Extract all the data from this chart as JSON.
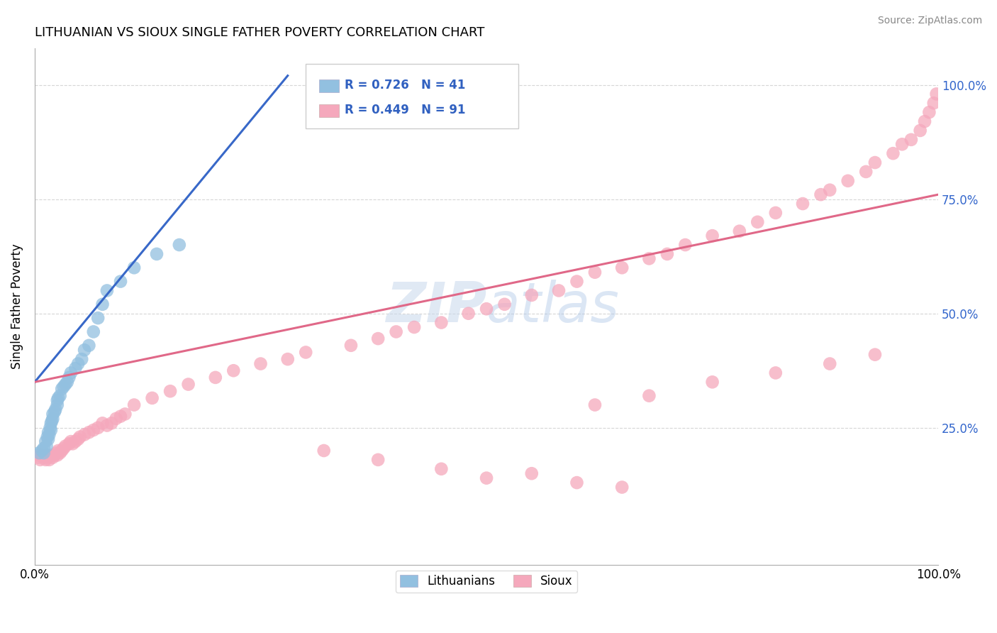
{
  "title": "LITHUANIAN VS SIOUX SINGLE FATHER POVERTY CORRELATION CHART",
  "source": "Source: ZipAtlas.com",
  "ylabel": "Single Father Poverty",
  "watermark_zip": "ZIP",
  "watermark_atlas": "atlas",
  "legend_blue_r": "R = 0.726",
  "legend_blue_n": "N = 41",
  "legend_pink_r": "R = 0.449",
  "legend_pink_n": "N = 91",
  "legend_label_blue": "Lithuanians",
  "legend_label_pink": "Sioux",
  "blue_color": "#92c0e0",
  "pink_color": "#f5a8bc",
  "blue_line_color": "#3868c8",
  "pink_line_color": "#e06888",
  "r_value_color": "#3060c0",
  "ytick_labels": [
    "25.0%",
    "50.0%",
    "75.0%",
    "100.0%"
  ],
  "ytick_values": [
    0.25,
    0.5,
    0.75,
    1.0
  ],
  "blue_scatter_x": [
    0.005,
    0.008,
    0.01,
    0.01,
    0.012,
    0.013,
    0.014,
    0.015,
    0.015,
    0.016,
    0.017,
    0.018,
    0.018,
    0.019,
    0.02,
    0.02,
    0.022,
    0.023,
    0.025,
    0.025,
    0.026,
    0.028,
    0.03,
    0.032,
    0.034,
    0.036,
    0.038,
    0.04,
    0.045,
    0.048,
    0.052,
    0.055,
    0.06,
    0.065,
    0.07,
    0.075,
    0.08,
    0.095,
    0.11,
    0.135,
    0.16
  ],
  "blue_scatter_y": [
    0.195,
    0.2,
    0.195,
    0.205,
    0.22,
    0.21,
    0.23,
    0.225,
    0.24,
    0.235,
    0.25,
    0.245,
    0.26,
    0.265,
    0.27,
    0.28,
    0.285,
    0.29,
    0.3,
    0.31,
    0.315,
    0.32,
    0.335,
    0.34,
    0.345,
    0.35,
    0.36,
    0.37,
    0.38,
    0.39,
    0.4,
    0.42,
    0.43,
    0.46,
    0.49,
    0.52,
    0.55,
    0.57,
    0.6,
    0.63,
    0.65
  ],
  "pink_scatter_x": [
    0.004,
    0.005,
    0.006,
    0.008,
    0.01,
    0.012,
    0.013,
    0.015,
    0.016,
    0.018,
    0.02,
    0.022,
    0.024,
    0.025,
    0.026,
    0.028,
    0.03,
    0.032,
    0.034,
    0.038,
    0.04,
    0.042,
    0.045,
    0.048,
    0.05,
    0.055,
    0.06,
    0.065,
    0.07,
    0.075,
    0.08,
    0.085,
    0.09,
    0.095,
    0.1,
    0.11,
    0.13,
    0.15,
    0.17,
    0.2,
    0.22,
    0.25,
    0.28,
    0.3,
    0.35,
    0.38,
    0.4,
    0.42,
    0.45,
    0.48,
    0.5,
    0.52,
    0.55,
    0.58,
    0.6,
    0.62,
    0.65,
    0.68,
    0.7,
    0.72,
    0.75,
    0.78,
    0.8,
    0.82,
    0.85,
    0.87,
    0.88,
    0.9,
    0.92,
    0.93,
    0.95,
    0.96,
    0.97,
    0.98,
    0.985,
    0.99,
    0.995,
    0.998,
    0.62,
    0.68,
    0.75,
    0.82,
    0.88,
    0.93,
    0.55,
    0.6,
    0.65,
    0.5,
    0.45,
    0.38,
    0.32
  ],
  "pink_scatter_y": [
    0.185,
    0.19,
    0.18,
    0.19,
    0.185,
    0.18,
    0.19,
    0.185,
    0.18,
    0.19,
    0.185,
    0.19,
    0.195,
    0.19,
    0.2,
    0.195,
    0.2,
    0.205,
    0.21,
    0.215,
    0.22,
    0.215,
    0.22,
    0.225,
    0.23,
    0.235,
    0.24,
    0.245,
    0.25,
    0.26,
    0.255,
    0.26,
    0.27,
    0.275,
    0.28,
    0.3,
    0.315,
    0.33,
    0.345,
    0.36,
    0.375,
    0.39,
    0.4,
    0.415,
    0.43,
    0.445,
    0.46,
    0.47,
    0.48,
    0.5,
    0.51,
    0.52,
    0.54,
    0.55,
    0.57,
    0.59,
    0.6,
    0.62,
    0.63,
    0.65,
    0.67,
    0.68,
    0.7,
    0.72,
    0.74,
    0.76,
    0.77,
    0.79,
    0.81,
    0.83,
    0.85,
    0.87,
    0.88,
    0.9,
    0.92,
    0.94,
    0.96,
    0.98,
    0.3,
    0.32,
    0.35,
    0.37,
    0.39,
    0.41,
    0.15,
    0.13,
    0.12,
    0.14,
    0.16,
    0.18,
    0.2
  ],
  "blue_trend_x": [
    0.0,
    0.28
  ],
  "blue_trend_y": [
    0.35,
    1.02
  ],
  "pink_trend_x": [
    0.0,
    1.0
  ],
  "pink_trend_y": [
    0.35,
    0.76
  ],
  "background_color": "#ffffff",
  "grid_color": "#cccccc",
  "xlim": [
    0.0,
    1.0
  ],
  "ylim": [
    -0.05,
    1.08
  ]
}
